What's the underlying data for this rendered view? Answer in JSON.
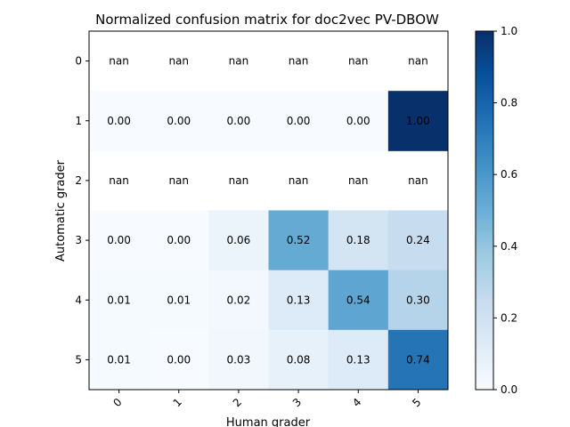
{
  "chart_data": {
    "type": "heatmap",
    "title": "Normalized confusion matrix for doc2vec PV-DBOW",
    "xlabel": "Human grader",
    "ylabel": "Automatic grader",
    "x_categories": [
      "0",
      "1",
      "2",
      "3",
      "4",
      "5"
    ],
    "y_categories": [
      "0",
      "1",
      "2",
      "3",
      "4",
      "5"
    ],
    "values": [
      [
        null,
        null,
        null,
        null,
        null,
        null
      ],
      [
        0.0,
        0.0,
        0.0,
        0.0,
        0.0,
        1.0
      ],
      [
        null,
        null,
        null,
        null,
        null,
        null
      ],
      [
        0.0,
        0.0,
        0.06,
        0.52,
        0.18,
        0.24
      ],
      [
        0.01,
        0.01,
        0.02,
        0.13,
        0.54,
        0.3
      ],
      [
        0.01,
        0.0,
        0.03,
        0.08,
        0.13,
        0.74
      ]
    ],
    "cell_labels": [
      [
        "nan",
        "nan",
        "nan",
        "nan",
        "nan",
        "nan"
      ],
      [
        "0.00",
        "0.00",
        "0.00",
        "0.00",
        "0.00",
        "1.00"
      ],
      [
        "nan",
        "nan",
        "nan",
        "nan",
        "nan",
        "nan"
      ],
      [
        "0.00",
        "0.00",
        "0.06",
        "0.52",
        "0.18",
        "0.24"
      ],
      [
        "0.01",
        "0.01",
        "0.02",
        "0.13",
        "0.54",
        "0.30"
      ],
      [
        "0.01",
        "0.00",
        "0.03",
        "0.08",
        "0.13",
        "0.74"
      ]
    ],
    "colormap": "Blues",
    "colorbar": {
      "range": [
        0.0,
        1.0
      ],
      "ticks": [
        "0.0",
        "0.2",
        "0.4",
        "0.6",
        "0.8",
        "1.0"
      ]
    },
    "x_tick_rotation": 45,
    "grid": false
  }
}
